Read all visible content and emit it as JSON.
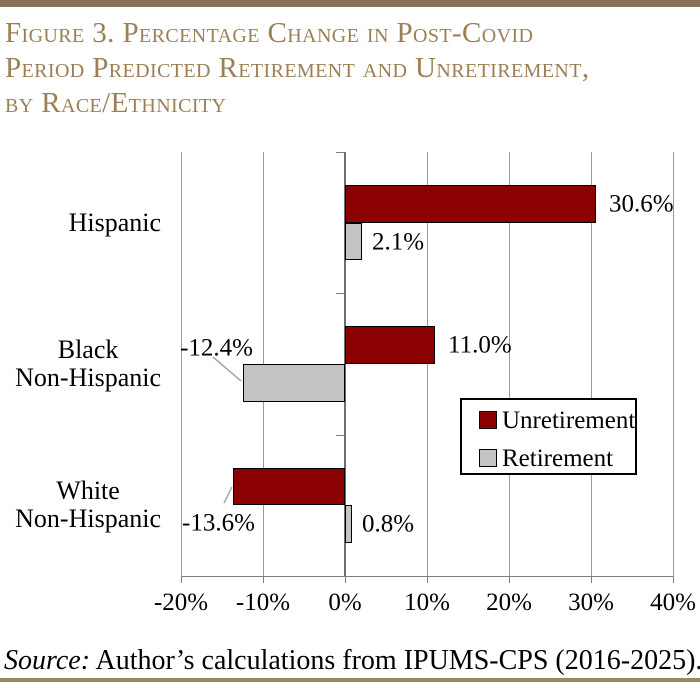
{
  "rules": {
    "top_color": "#8A7355",
    "bottom_color": "#9A8862"
  },
  "header": {
    "title_lines": [
      "Figure 3. Percentage Change in Post-Covid",
      "Period Predicted Retirement and Unretirement,",
      "by Race/Ethnicity"
    ],
    "title_color": "#9C7F54"
  },
  "chart_data": {
    "type": "bar",
    "orientation": "horizontal",
    "title": "Figure 3. Percentage Change in Post-Covid Period Predicted Retirement and Unretirement, by Race/Ethnicity",
    "categories": [
      "Hispanic",
      "Black Non-Hispanic",
      "White Non-Hispanic"
    ],
    "category_label_lines": [
      [
        "Hispanic"
      ],
      [
        "Black",
        "Non-Hispanic"
      ],
      [
        "White",
        "Non-Hispanic"
      ]
    ],
    "series": [
      {
        "name": "Unretirement",
        "color": "#8B0000",
        "values": [
          30.6,
          11.0,
          -13.6
        ],
        "value_labels": [
          "30.6%",
          "11.0%",
          "-13.6%"
        ]
      },
      {
        "name": "Retirement",
        "color": "#C4C4C4",
        "values": [
          2.1,
          -12.4,
          0.8
        ],
        "value_labels": [
          "2.1%",
          "-12.4%",
          "0.8%"
        ]
      }
    ],
    "xlim": [
      -20,
      40
    ],
    "x_ticks": [
      -20,
      -10,
      0,
      10,
      20,
      30,
      40
    ],
    "x_tick_labels": [
      "-20%",
      "-10%",
      "0%",
      "10%",
      "20%",
      "30%",
      "40%"
    ],
    "grid": true,
    "legend_position": "inside-right",
    "gridline_color": "#9A9A9A",
    "axis_color": "#808080"
  },
  "source": {
    "prefix": "Source:",
    "text": " Author’s calculations from IPUMS-CPS (2016-2025)."
  }
}
